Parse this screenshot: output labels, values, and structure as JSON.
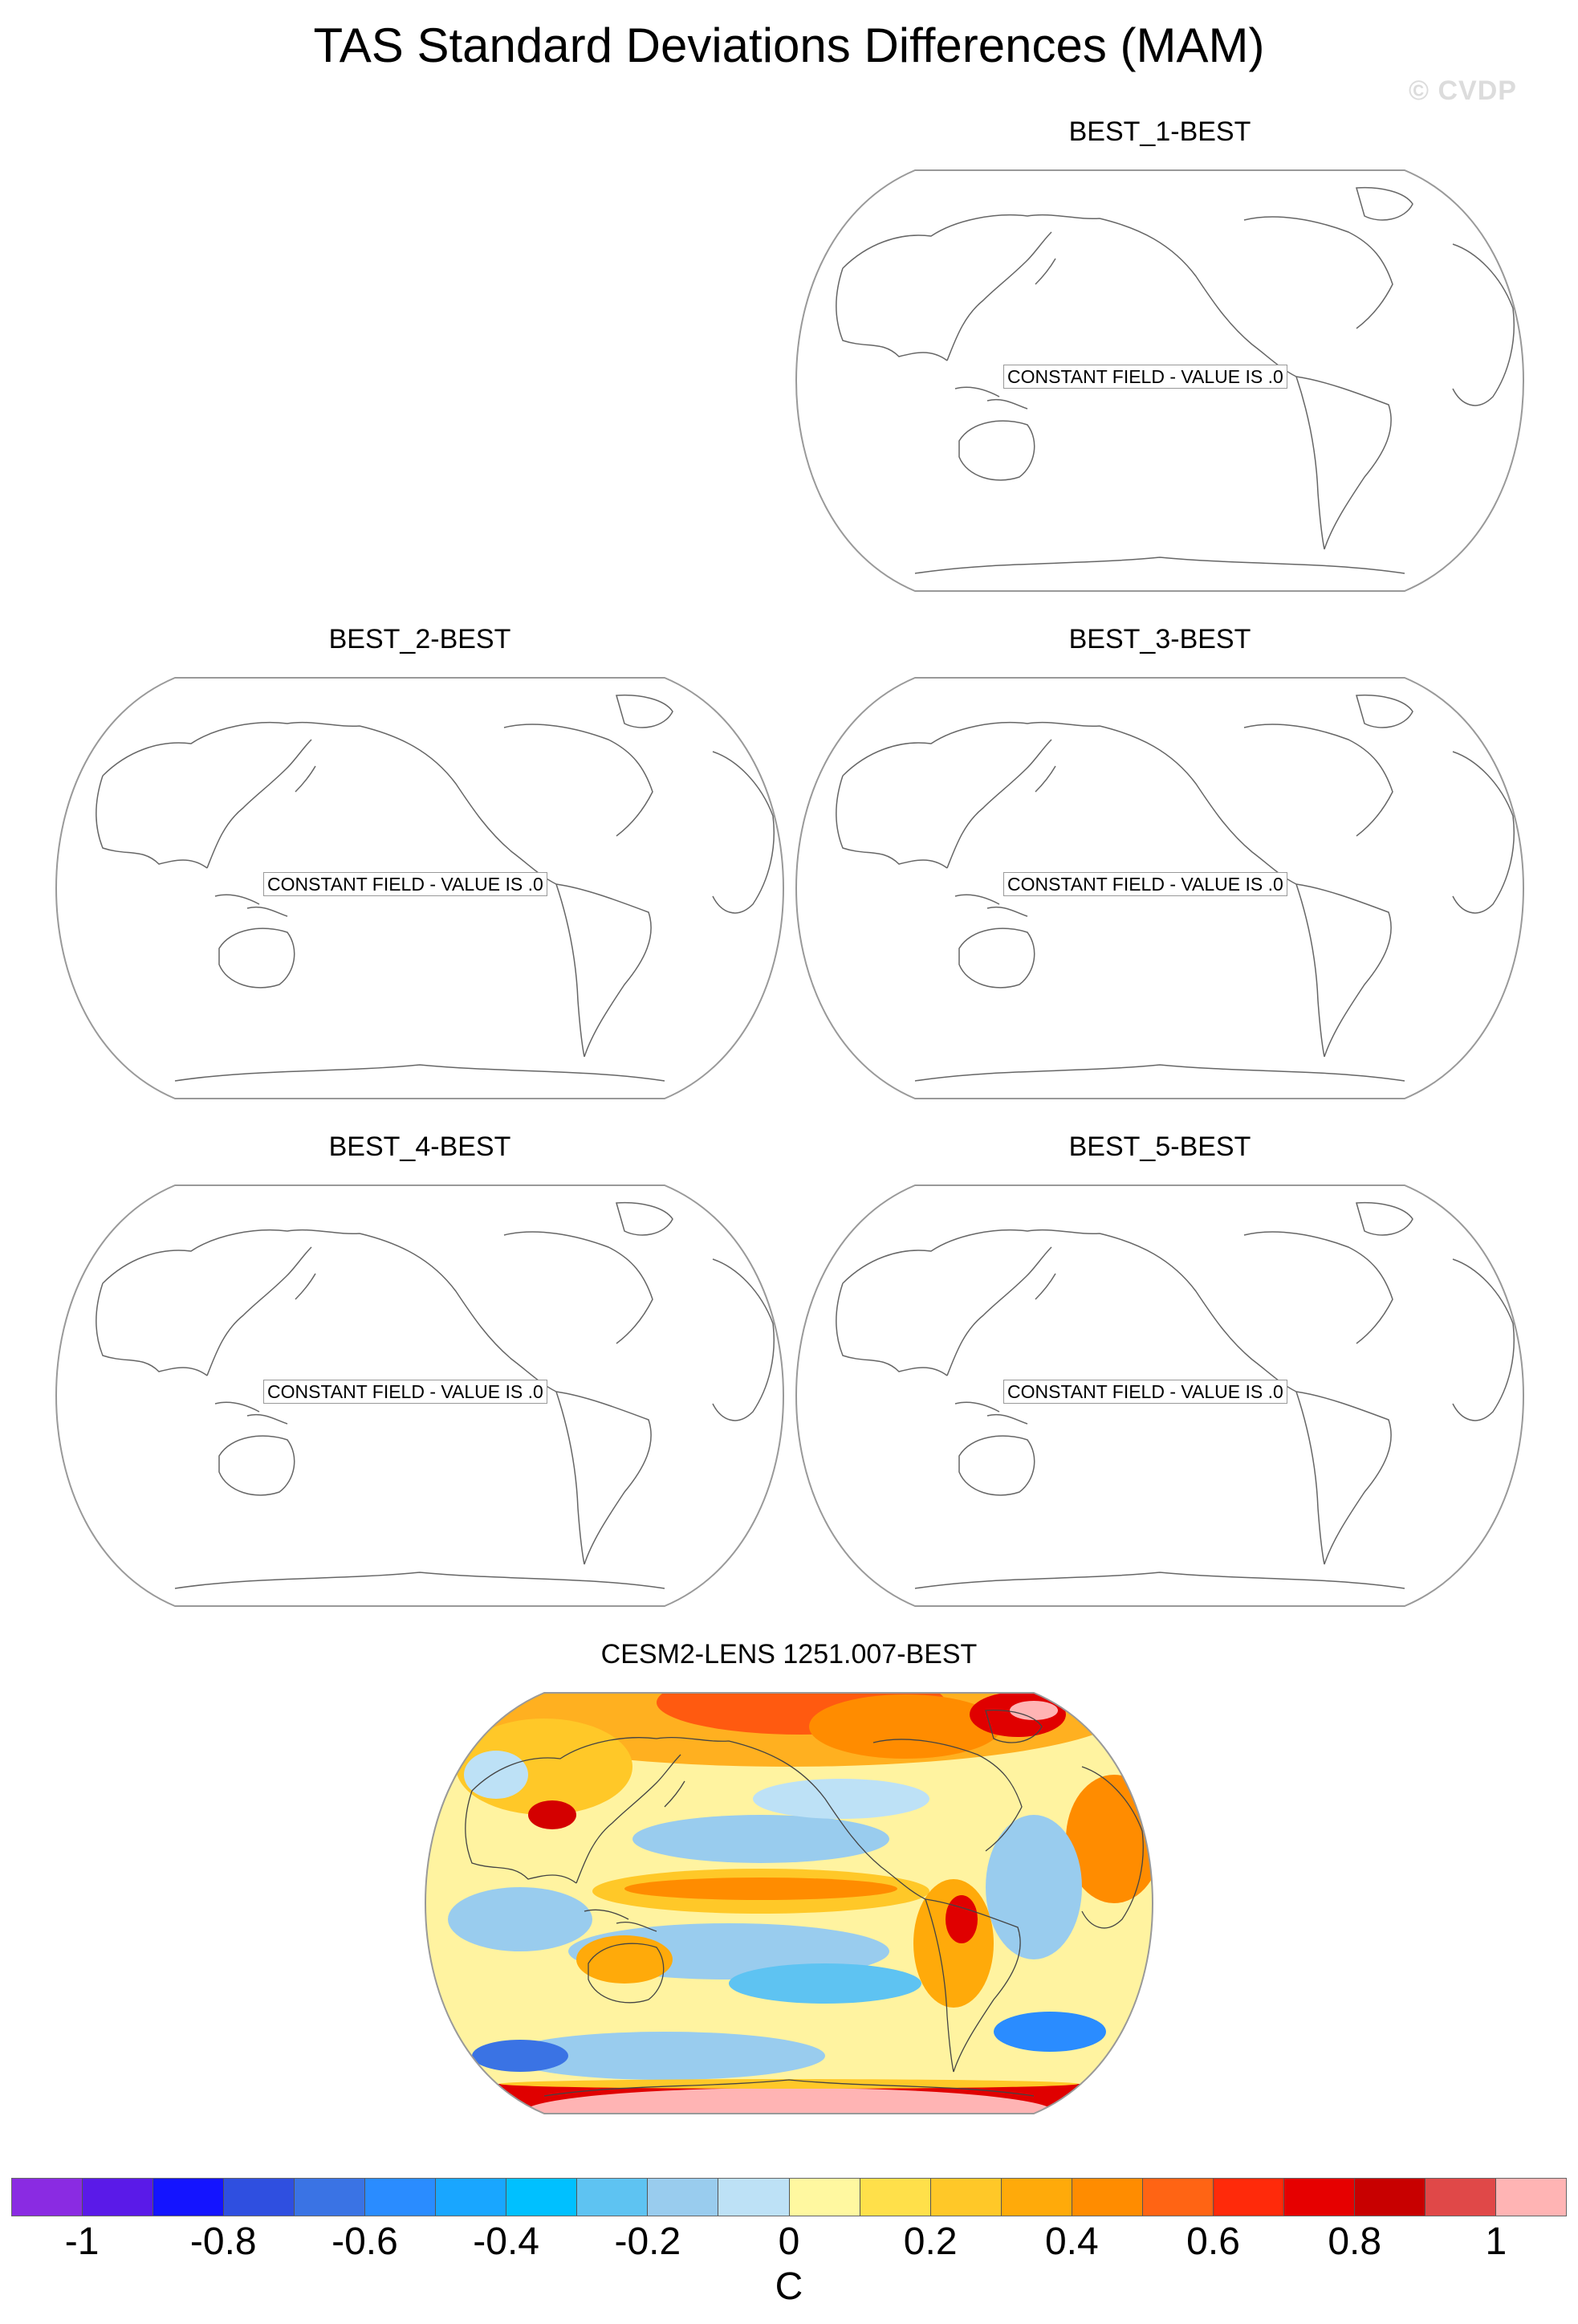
{
  "figure": {
    "title": "TAS Standard Deviations Differences (MAM)",
    "watermark": "© CVDP"
  },
  "panels": [
    {
      "title": "BEST_1-BEST",
      "constant_label": "CONSTANT FIELD - VALUE IS .0"
    },
    {
      "title": "BEST_2-BEST",
      "constant_label": "CONSTANT FIELD - VALUE IS .0"
    },
    {
      "title": "BEST_3-BEST",
      "constant_label": "CONSTANT FIELD - VALUE IS .0"
    },
    {
      "title": "BEST_4-BEST",
      "constant_label": "CONSTANT FIELD - VALUE IS .0"
    },
    {
      "title": "BEST_5-BEST",
      "constant_label": "CONSTANT FIELD - VALUE IS .0"
    },
    {
      "title": "CESM2-LENS 1251.007-BEST"
    }
  ],
  "colorbar": {
    "units": "C",
    "tick_labels": [
      "-1",
      "-0.8",
      "-0.6",
      "-0.4",
      "-0.2",
      "0",
      "0.2",
      "0.4",
      "0.6",
      "0.8",
      "1"
    ],
    "colors": [
      "#8a2be2",
      "#5a1ae8",
      "#1414ff",
      "#2f4fe0",
      "#3a73e4",
      "#2a8cff",
      "#19a6ff",
      "#00c0ff",
      "#5ec3f2",
      "#99ccee",
      "#bde1f6",
      "#fff8a0",
      "#ffe04a",
      "#ffc828",
      "#ffaa0a",
      "#ff8c00",
      "#ff6414",
      "#ff2a0a",
      "#e60000",
      "#c80000",
      "#e04848",
      "#ffb4b4"
    ]
  }
}
